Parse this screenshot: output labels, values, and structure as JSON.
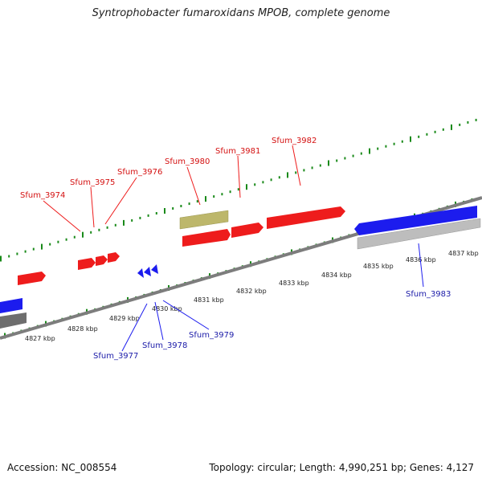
{
  "title": "Syntrophobacter fumaroxidans MPOB, complete genome",
  "footer": {
    "accession": "Accession: NC_008554",
    "summary": "Topology: circular; Length: 4,990,251 bp; Genes: 4,127"
  },
  "colors": {
    "forward_gene": "#ee1c1c",
    "reverse_gene": "#1c1cee",
    "other_feature": "#bdb76b",
    "backbone": "#808080",
    "gc_ticks": "#1a8a1a"
  },
  "position_labels": [
    "4827 kbp",
    "4828 kbp",
    "4829 kbp",
    "4830 kbp",
    "4831 kbp",
    "4832 kbp",
    "4833 kbp",
    "4834 kbp",
    "4835 kbp",
    "4836 kbp",
    "4837 kbp"
  ],
  "forward_genes": [
    "Sfum_3974",
    "Sfum_3975",
    "Sfum_3976",
    "Sfum_3980",
    "Sfum_3981",
    "Sfum_3982"
  ],
  "reverse_genes": [
    "Sfum_3977",
    "Sfum_3978",
    "Sfum_3979",
    "Sfum_3983"
  ]
}
